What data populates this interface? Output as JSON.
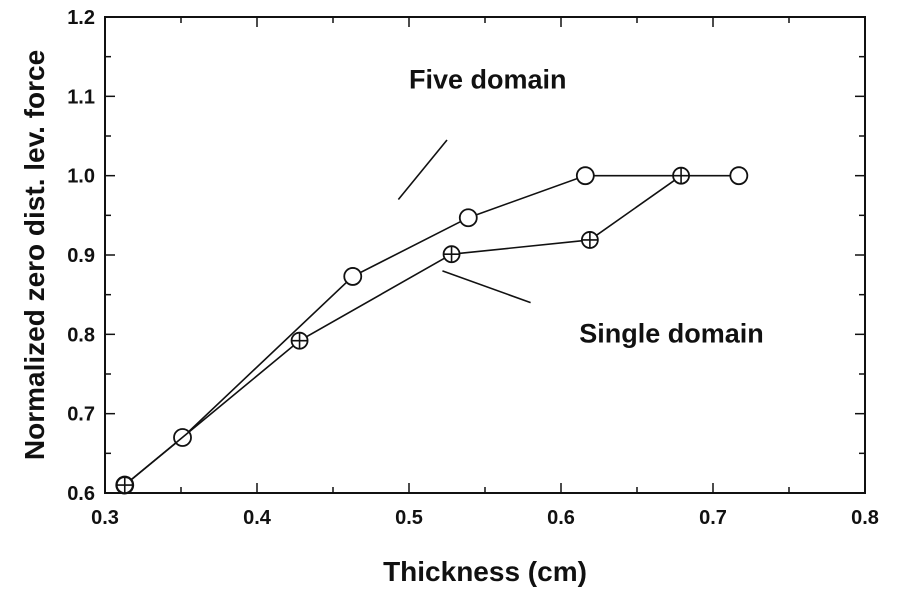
{
  "chart_data": {
    "type": "line",
    "xlabel": "Thickness (cm)",
    "ylabel": "Normalized zero dist. lev. force",
    "xlim": [
      0.3,
      0.8
    ],
    "ylim": [
      0.6,
      1.2
    ],
    "xticks": [
      "0.3",
      "0.4",
      "0.5",
      "0.6",
      "0.7",
      "0.8"
    ],
    "yticks": [
      "0.6",
      "0.7",
      "0.8",
      "0.9",
      "1.0",
      "1.1",
      "1.2"
    ],
    "grid": false,
    "legend": "none (curves labeled by annotations)",
    "series": [
      {
        "name": "Five domain",
        "marker": "open-circle",
        "x": [
          0.313,
          0.351,
          0.463,
          0.539,
          0.616,
          0.717
        ],
        "y": [
          0.61,
          0.67,
          0.873,
          0.947,
          1.0,
          1.0
        ]
      },
      {
        "name": "Single domain",
        "marker": "circle-cross",
        "x": [
          0.313,
          0.428,
          0.528,
          0.619,
          0.679
        ],
        "y": [
          0.61,
          0.792,
          0.901,
          0.919,
          1.0
        ]
      }
    ],
    "annotations": [
      {
        "text": "Five domain",
        "x": 0.5,
        "y": 1.11,
        "pointer_from": [
          0.525,
          1.045
        ],
        "pointer_to": [
          0.493,
          0.97
        ]
      },
      {
        "text": "Single domain",
        "x": 0.612,
        "y": 0.79,
        "pointer_from": [
          0.58,
          0.84
        ],
        "pointer_to": [
          0.522,
          0.88
        ]
      }
    ]
  }
}
